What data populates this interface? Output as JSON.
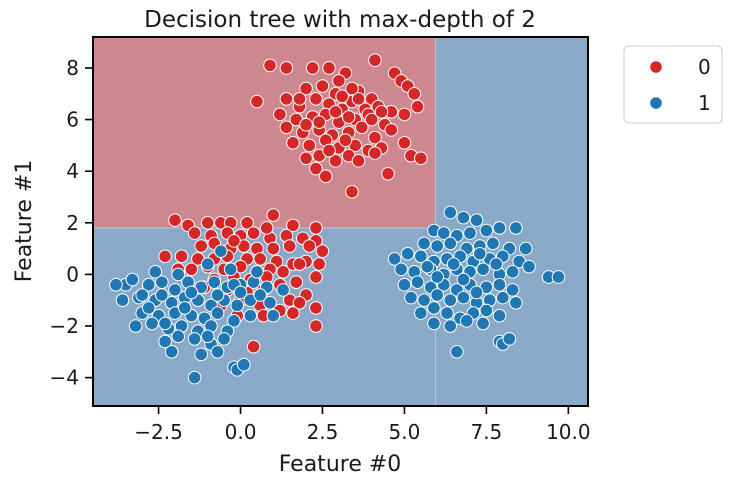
{
  "chart_data": {
    "type": "scatter",
    "title": "Decision tree with max-depth of 2",
    "xlabel": "Feature #0",
    "ylabel": "Feature #1",
    "xlim": [
      -4.5,
      10.6
    ],
    "ylim": [
      -5.1,
      9.2
    ],
    "xticks": [
      -2.5,
      0.0,
      2.5,
      5.0,
      7.5,
      10.0
    ],
    "xtick_labels": [
      "−2.5",
      "0.0",
      "2.5",
      "5.0",
      "7.5",
      "10.0"
    ],
    "yticks": [
      -4,
      -2,
      0,
      2,
      4,
      6,
      8
    ],
    "ytick_labels": [
      "−4",
      "−2",
      "0",
      "2",
      "4",
      "6",
      "8"
    ],
    "decision_regions": [
      {
        "label": "0",
        "x": [
          -4.5,
          5.95
        ],
        "y": [
          1.8,
          9.2
        ]
      },
      {
        "label": "1",
        "x": [
          -4.5,
          5.95
        ],
        "y": [
          -5.1,
          1.8
        ]
      },
      {
        "label": "1",
        "x": [
          5.95,
          10.6
        ],
        "y": [
          -5.1,
          9.2
        ]
      }
    ],
    "region_colors": {
      "0": "#cc878f",
      "1": "#8aa9c8"
    },
    "legend": {
      "placement": "outside-top-right",
      "entries": [
        "0",
        "1"
      ]
    },
    "series": [
      {
        "name": "0",
        "color": "#d62728",
        "points": [
          [
            0.9,
            8.1
          ],
          [
            1.4,
            8.0
          ],
          [
            2.2,
            8.0
          ],
          [
            2.7,
            8.0
          ],
          [
            3.2,
            7.8
          ],
          [
            4.1,
            8.3
          ],
          [
            4.7,
            7.8
          ],
          [
            4.9,
            7.5
          ],
          [
            5.1,
            7.3
          ],
          [
            5.3,
            7.0
          ],
          [
            2.0,
            7.2
          ],
          [
            2.5,
            7.3
          ],
          [
            2.9,
            7.0
          ],
          [
            3.6,
            7.1
          ],
          [
            4.0,
            6.8
          ],
          [
            1.4,
            6.8
          ],
          [
            1.8,
            6.5
          ],
          [
            2.3,
            6.8
          ],
          [
            2.7,
            6.6
          ],
          [
            3.1,
            6.4
          ],
          [
            3.4,
            6.7
          ],
          [
            3.8,
            6.4
          ],
          [
            4.2,
            6.5
          ],
          [
            4.6,
            6.3
          ],
          [
            5.0,
            6.2
          ],
          [
            5.4,
            6.5
          ],
          [
            0.5,
            6.7
          ],
          [
            1.2,
            6.2
          ],
          [
            1.7,
            6.0
          ],
          [
            2.2,
            6.1
          ],
          [
            2.6,
            6.2
          ],
          [
            3.0,
            5.9
          ],
          [
            3.5,
            6.0
          ],
          [
            3.9,
            6.2
          ],
          [
            4.4,
            5.8
          ],
          [
            1.4,
            5.7
          ],
          [
            1.9,
            5.5
          ],
          [
            2.4,
            5.6
          ],
          [
            2.8,
            5.4
          ],
          [
            3.3,
            5.5
          ],
          [
            3.7,
            5.7
          ],
          [
            4.1,
            5.3
          ],
          [
            4.6,
            5.6
          ],
          [
            1.6,
            5.1
          ],
          [
            2.1,
            5.0
          ],
          [
            2.6,
            5.2
          ],
          [
            3.0,
            4.9
          ],
          [
            3.5,
            5.0
          ],
          [
            3.9,
            4.8
          ],
          [
            4.3,
            4.9
          ],
          [
            5.0,
            5.1
          ],
          [
            2.0,
            4.5
          ],
          [
            2.4,
            4.6
          ],
          [
            2.9,
            4.4
          ],
          [
            3.3,
            4.6
          ],
          [
            3.6,
            4.4
          ],
          [
            4.1,
            4.7
          ],
          [
            5.2,
            4.6
          ],
          [
            5.5,
            4.5
          ],
          [
            2.3,
            4.1
          ],
          [
            2.6,
            3.8
          ],
          [
            3.4,
            3.2
          ],
          [
            4.5,
            3.9
          ],
          [
            3.1,
            6.9
          ],
          [
            3.6,
            6.8
          ],
          [
            2.9,
            6.3
          ],
          [
            3.3,
            6.1
          ],
          [
            2.4,
            5.9
          ],
          [
            4.0,
            6.0
          ],
          [
            4.3,
            6.3
          ],
          [
            3.2,
            5.2
          ],
          [
            2.7,
            4.8
          ],
          [
            1.8,
            6.8
          ],
          [
            3.0,
            7.5
          ],
          [
            3.4,
            7.2
          ],
          [
            2.0,
            5.8
          ],
          [
            -2.0,
            2.1
          ],
          [
            -1.6,
            1.9
          ],
          [
            -1.0,
            2.0
          ],
          [
            -0.6,
            2.0
          ],
          [
            -0.3,
            2.0
          ],
          [
            0.2,
            2.0
          ],
          [
            1.0,
            2.3
          ],
          [
            1.6,
            1.9
          ],
          [
            2.3,
            1.8
          ],
          [
            -1.4,
            1.6
          ],
          [
            -0.9,
            1.5
          ],
          [
            -0.4,
            1.6
          ],
          [
            0.0,
            1.5
          ],
          [
            0.4,
            1.6
          ],
          [
            0.9,
            1.4
          ],
          [
            1.4,
            1.5
          ],
          [
            1.9,
            1.4
          ],
          [
            2.3,
            1.3
          ],
          [
            -1.2,
            1.1
          ],
          [
            -0.8,
            1.2
          ],
          [
            -0.3,
            1.0
          ],
          [
            0.1,
            1.1
          ],
          [
            0.5,
            1.0
          ],
          [
            1.0,
            1.0
          ],
          [
            1.5,
            1.1
          ],
          [
            2.1,
            1.1
          ],
          [
            -1.8,
            0.7
          ],
          [
            -1.3,
            0.6
          ],
          [
            -0.8,
            0.6
          ],
          [
            -0.4,
            0.7
          ],
          [
            0.2,
            0.6
          ],
          [
            0.6,
            0.6
          ],
          [
            1.1,
            0.5
          ],
          [
            1.6,
            0.4
          ],
          [
            2.0,
            0.5
          ],
          [
            2.5,
            0.9
          ],
          [
            -2.3,
            0.7
          ],
          [
            -1.5,
            0.2
          ],
          [
            -1.0,
            0.3
          ],
          [
            -0.5,
            0.2
          ],
          [
            0.0,
            0.3
          ],
          [
            0.5,
            0.1
          ],
          [
            0.9,
            0.2
          ],
          [
            1.3,
            0.1
          ],
          [
            1.8,
            0.4
          ],
          [
            2.4,
            0.4
          ],
          [
            -1.9,
            0.2
          ],
          [
            -0.8,
            -0.2
          ],
          [
            -0.2,
            -0.1
          ],
          [
            0.3,
            -0.2
          ],
          [
            0.8,
            -0.1
          ],
          [
            1.2,
            -0.4
          ],
          [
            1.7,
            -0.3
          ],
          [
            2.3,
            -0.1
          ],
          [
            -1.1,
            -0.5
          ],
          [
            -0.4,
            -0.6
          ],
          [
            0.2,
            -0.7
          ],
          [
            0.7,
            -0.6
          ],
          [
            1.5,
            -1.0
          ],
          [
            2.0,
            -0.8
          ],
          [
            -0.6,
            -1.2
          ],
          [
            0.0,
            -1.0
          ],
          [
            0.6,
            -1.2
          ],
          [
            1.2,
            -1.4
          ],
          [
            1.8,
            -1.1
          ],
          [
            2.3,
            -1.3
          ],
          [
            -0.1,
            -1.6
          ],
          [
            0.7,
            -1.6
          ],
          [
            1.6,
            -1.5
          ],
          [
            2.3,
            -2.0
          ],
          [
            0.4,
            -2.8
          ],
          [
            -0.2,
            1.3
          ],
          [
            0.8,
            1.8
          ]
        ]
      },
      {
        "name": "1",
        "color": "#1f77b4",
        "points": [
          [
            -3.5,
            -0.4
          ],
          [
            -3.3,
            -0.2
          ],
          [
            -2.8,
            -0.4
          ],
          [
            -2.4,
            -0.3
          ],
          [
            -2.0,
            -0.6
          ],
          [
            -1.6,
            -0.3
          ],
          [
            -1.2,
            -0.5
          ],
          [
            -0.8,
            -0.3
          ],
          [
            -0.4,
            -0.5
          ],
          [
            0.0,
            -0.4
          ],
          [
            0.4,
            -0.3
          ],
          [
            0.8,
            -0.5
          ],
          [
            1.3,
            -0.6
          ],
          [
            -3.6,
            -1.0
          ],
          [
            -3.1,
            -0.9
          ],
          [
            -2.6,
            -1.0
          ],
          [
            -2.1,
            -1.1
          ],
          [
            -1.7,
            -0.9
          ],
          [
            -1.3,
            -1.0
          ],
          [
            -0.9,
            -1.2
          ],
          [
            -0.5,
            -1.0
          ],
          [
            -0.1,
            -1.2
          ],
          [
            0.3,
            -1.0
          ],
          [
            0.9,
            -1.1
          ],
          [
            -3.0,
            -1.5
          ],
          [
            -2.5,
            -1.6
          ],
          [
            -2.0,
            -1.5
          ],
          [
            -1.5,
            -1.6
          ],
          [
            -1.1,
            -1.7
          ],
          [
            -0.7,
            -1.5
          ],
          [
            -0.2,
            -1.8
          ],
          [
            0.3,
            -1.6
          ],
          [
            -3.2,
            -2.0
          ],
          [
            -2.7,
            -1.9
          ],
          [
            -2.2,
            -2.1
          ],
          [
            -1.8,
            -2.0
          ],
          [
            -1.3,
            -2.2
          ],
          [
            -0.9,
            -2.0
          ],
          [
            -0.4,
            -2.2
          ],
          [
            -2.3,
            -2.6
          ],
          [
            -1.9,
            -2.4
          ],
          [
            -1.4,
            -2.5
          ],
          [
            -0.9,
            -2.7
          ],
          [
            -0.5,
            -2.5
          ],
          [
            -1.2,
            -3.1
          ],
          [
            -0.7,
            -3.0
          ],
          [
            -2.1,
            -3.0
          ],
          [
            -1.4,
            -4.0
          ],
          [
            -0.2,
            -3.6
          ],
          [
            -0.1,
            -3.7
          ],
          [
            0.1,
            -3.5
          ],
          [
            -3.0,
            -0.8
          ],
          [
            -2.4,
            -0.8
          ],
          [
            -1.9,
            0.0
          ],
          [
            -1.5,
            -0.7
          ],
          [
            -1.0,
            0.4
          ],
          [
            -0.6,
            0.9
          ],
          [
            -0.2,
            -0.4
          ],
          [
            0.5,
            0.1
          ],
          [
            -0.3,
            0.2
          ],
          [
            -1.7,
            -1.3
          ],
          [
            -2.8,
            -1.3
          ],
          [
            -0.7,
            -0.8
          ],
          [
            0.6,
            -0.8
          ],
          [
            1.0,
            -1.6
          ],
          [
            -3.8,
            -0.4
          ],
          [
            -2.3,
            -1.9
          ],
          [
            -1.0,
            -2.4
          ],
          [
            0.0,
            -0.7
          ],
          [
            -2.6,
            0.1
          ],
          [
            6.4,
            2.4
          ],
          [
            6.8,
            2.2
          ],
          [
            7.2,
            2.1
          ],
          [
            5.9,
            1.7
          ],
          [
            6.2,
            1.6
          ],
          [
            6.6,
            1.5
          ],
          [
            7.0,
            1.6
          ],
          [
            7.5,
            1.7
          ],
          [
            7.9,
            1.8
          ],
          [
            8.4,
            1.8
          ],
          [
            5.6,
            1.2
          ],
          [
            6.0,
            1.1
          ],
          [
            6.4,
            1.2
          ],
          [
            6.9,
            1.0
          ],
          [
            7.3,
            1.1
          ],
          [
            7.7,
            1.2
          ],
          [
            8.2,
            1.0
          ],
          [
            8.7,
            1.0
          ],
          [
            4.7,
            0.6
          ],
          [
            5.1,
            0.8
          ],
          [
            5.5,
            0.7
          ],
          [
            5.9,
            0.5
          ],
          [
            6.3,
            0.6
          ],
          [
            6.7,
            0.7
          ],
          [
            7.1,
            0.5
          ],
          [
            7.6,
            0.6
          ],
          [
            8.0,
            0.7
          ],
          [
            8.5,
            0.5
          ],
          [
            4.9,
            0.2
          ],
          [
            5.3,
            0.1
          ],
          [
            5.8,
            0.2
          ],
          [
            6.2,
            0.0
          ],
          [
            6.6,
            0.2
          ],
          [
            7.0,
            0.1
          ],
          [
            7.4,
            0.2
          ],
          [
            7.9,
            0.0
          ],
          [
            8.3,
            0.1
          ],
          [
            8.8,
            0.3
          ],
          [
            9.4,
            -0.1
          ],
          [
            9.7,
            -0.1
          ],
          [
            5.0,
            -0.4
          ],
          [
            5.4,
            -0.3
          ],
          [
            5.8,
            -0.5
          ],
          [
            6.2,
            -0.4
          ],
          [
            6.6,
            -0.6
          ],
          [
            7.0,
            -0.4
          ],
          [
            7.5,
            -0.5
          ],
          [
            7.9,
            -0.4
          ],
          [
            8.3,
            -0.6
          ],
          [
            5.2,
            -0.9
          ],
          [
            5.6,
            -1.0
          ],
          [
            6.0,
            -0.8
          ],
          [
            6.4,
            -1.0
          ],
          [
            6.8,
            -0.9
          ],
          [
            7.2,
            -1.1
          ],
          [
            7.6,
            -1.0
          ],
          [
            8.0,
            -0.9
          ],
          [
            8.4,
            -1.1
          ],
          [
            5.5,
            -1.5
          ],
          [
            5.9,
            -1.3
          ],
          [
            6.3,
            -1.5
          ],
          [
            6.7,
            -1.7
          ],
          [
            7.1,
            -1.5
          ],
          [
            7.5,
            -1.4
          ],
          [
            7.9,
            -1.6
          ],
          [
            5.9,
            -1.9
          ],
          [
            6.4,
            -2.0
          ],
          [
            6.9,
            -1.8
          ],
          [
            7.4,
            -1.9
          ],
          [
            6.6,
            -3.0
          ],
          [
            7.9,
            -2.6
          ],
          [
            8.0,
            -2.7
          ],
          [
            8.2,
            -2.5
          ],
          [
            6.8,
            -0.2
          ],
          [
            7.3,
            0.8
          ],
          [
            6.0,
            -0.1
          ],
          [
            7.8,
            0.4
          ],
          [
            6.5,
            0.4
          ],
          [
            7.2,
            -0.7
          ],
          [
            5.7,
            0.3
          ]
        ]
      }
    ]
  }
}
